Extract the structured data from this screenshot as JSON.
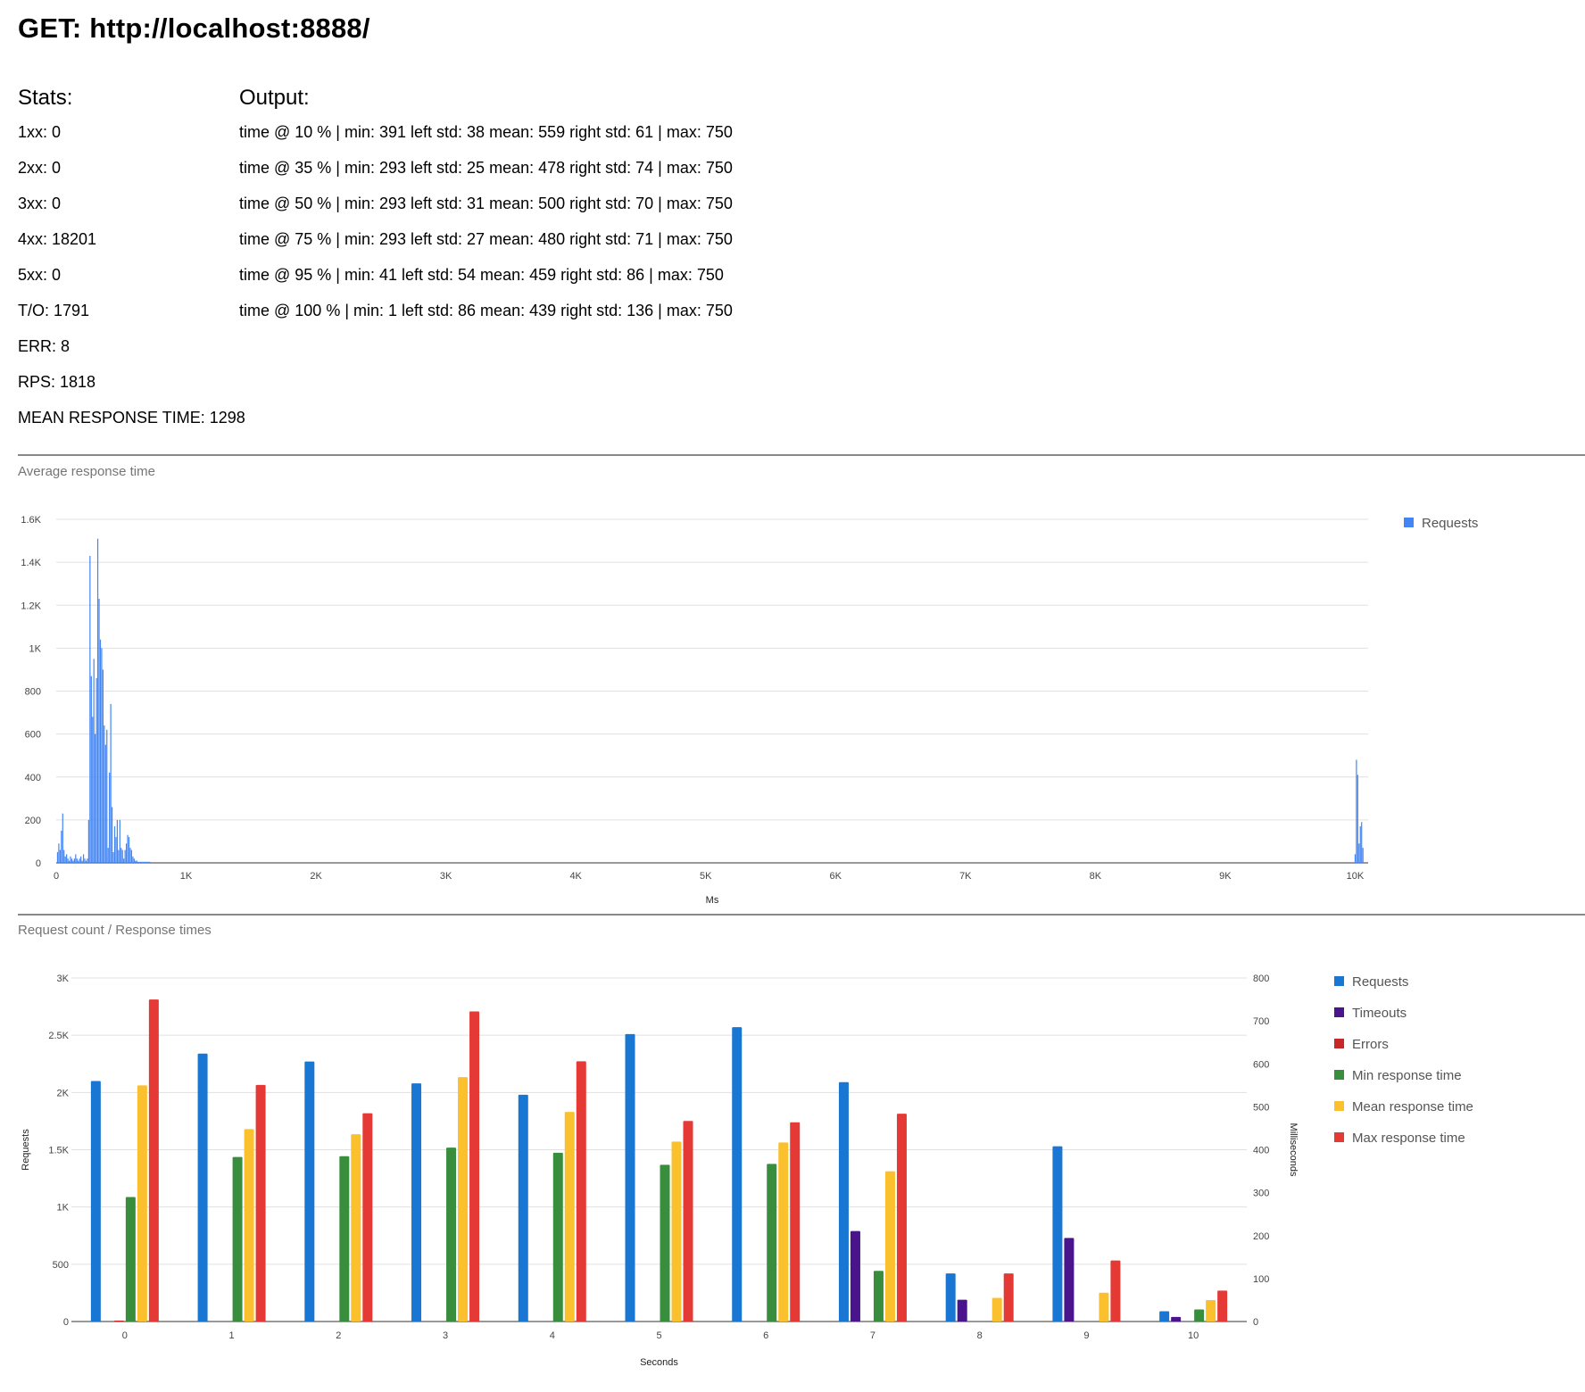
{
  "header": {
    "title": "GET: http://localhost:8888/"
  },
  "stats": {
    "heading": "Stats:",
    "rows": [
      "1xx: 0",
      "2xx: 0",
      "3xx: 0",
      "4xx: 18201",
      "5xx: 0",
      "T/O: 1791",
      "ERR: 8",
      "RPS: 1818",
      "MEAN RESPONSE TIME: 1298"
    ]
  },
  "output": {
    "heading": "Output:",
    "rows": [
      "time @ 10 % | min: 391 left std: 38 mean: 559 right std: 61 | max: 750",
      "time @ 35 % | min: 293 left std: 25 mean: 478 right std: 74 | max: 750",
      "time @ 50 % | min: 293 left std: 31 mean: 500 right std: 70 | max: 750",
      "time @ 75 % | min: 293 left std: 27 mean: 480 right std: 71 | max: 750",
      "time @ 95 % | min: 41 left std: 54 mean: 459 right std: 86 | max: 750",
      "time @ 100 % | min: 1 left std: 86 mean: 439 right std: 136 | max: 750"
    ]
  },
  "chart_data": [
    {
      "type": "bar",
      "title": "Average response time",
      "xlabel": "Ms",
      "ylabel": "",
      "xlim": [
        0,
        10100
      ],
      "ylim": [
        0,
        1600
      ],
      "x_ticks": [
        0,
        1000,
        2000,
        3000,
        4000,
        5000,
        6000,
        7000,
        8000,
        9000,
        10000
      ],
      "x_tick_labels": [
        "0",
        "1K",
        "2K",
        "3K",
        "4K",
        "5K",
        "6K",
        "7K",
        "8K",
        "9K",
        "10K"
      ],
      "y_ticks": [
        0,
        200,
        400,
        600,
        800,
        1000,
        1200,
        1400,
        1600
      ],
      "y_tick_labels": [
        "0",
        "200",
        "400",
        "600",
        "800",
        "1K",
        "1.2K",
        "1.4K",
        "1.6K"
      ],
      "grid": true,
      "legend_position": "right",
      "series": [
        {
          "name": "Requests",
          "color": "#4285f4"
        }
      ],
      "x": [
        10,
        20,
        30,
        40,
        50,
        60,
        70,
        80,
        90,
        100,
        110,
        120,
        130,
        140,
        150,
        160,
        170,
        180,
        190,
        200,
        210,
        220,
        230,
        240,
        250,
        260,
        270,
        280,
        290,
        300,
        310,
        320,
        330,
        340,
        350,
        360,
        370,
        380,
        390,
        400,
        410,
        420,
        430,
        440,
        450,
        460,
        470,
        480,
        490,
        500,
        510,
        520,
        530,
        540,
        550,
        560,
        570,
        580,
        590,
        600,
        610,
        620,
        630,
        640,
        650,
        660,
        670,
        680,
        690,
        700,
        710,
        720,
        10000,
        10010,
        10020,
        10030,
        10040,
        10050,
        10060
      ],
      "values": [
        50,
        90,
        60,
        150,
        230,
        60,
        30,
        40,
        20,
        10,
        30,
        20,
        10,
        20,
        40,
        20,
        10,
        20,
        30,
        10,
        40,
        20,
        10,
        20,
        200,
        1430,
        870,
        680,
        950,
        600,
        860,
        1510,
        1230,
        1040,
        1000,
        900,
        640,
        550,
        620,
        70,
        420,
        740,
        260,
        50,
        170,
        120,
        200,
        60,
        200,
        70,
        60,
        20,
        60,
        90,
        130,
        120,
        70,
        60,
        30,
        20,
        10,
        10,
        5,
        5,
        5,
        5,
        5,
        5,
        5,
        5,
        5,
        5,
        40,
        480,
        410,
        90,
        170,
        190,
        70
      ]
    },
    {
      "type": "bar",
      "title": "Request count / Response times",
      "xlabel": "Seconds",
      "ylabel": "Requests",
      "ylabel_right": "Milliseconds",
      "categories": [
        "0",
        "1",
        "2",
        "3",
        "4",
        "5",
        "6",
        "7",
        "8",
        "9",
        "10"
      ],
      "ylim": [
        0,
        3000
      ],
      "ylim_right": [
        0,
        800
      ],
      "y_ticks": [
        0,
        500,
        1000,
        1500,
        2000,
        2500,
        3000
      ],
      "y_tick_labels": [
        "0",
        "500",
        "1K",
        "1.5K",
        "2K",
        "2.5K",
        "3K"
      ],
      "y_ticks_right": [
        0,
        100,
        200,
        300,
        400,
        500,
        600,
        700,
        800
      ],
      "y_tick_labels_right": [
        "0",
        "100",
        "200",
        "300",
        "400",
        "500",
        "600",
        "700",
        "800"
      ],
      "grid": true,
      "legend_position": "right",
      "series": [
        {
          "name": "Requests",
          "axis": "left",
          "color": "#1976d2",
          "values": [
            2100,
            2340,
            2270,
            2080,
            1980,
            2510,
            2570,
            2090,
            420,
            1530,
            90
          ]
        },
        {
          "name": "Timeouts",
          "axis": "left",
          "color": "#4a148c",
          "values": [
            0,
            0,
            0,
            0,
            0,
            0,
            0,
            790,
            190,
            730,
            40
          ]
        },
        {
          "name": "Errors",
          "axis": "left",
          "color": "#c62828",
          "values": [
            8,
            0,
            0,
            0,
            0,
            0,
            0,
            0,
            0,
            0,
            0
          ]
        },
        {
          "name": "Min response time",
          "axis": "right",
          "color": "#388e3c",
          "values": [
            290,
            383,
            385,
            405,
            393,
            365,
            367,
            118,
            0,
            0,
            28
          ]
        },
        {
          "name": "Mean response time",
          "axis": "right",
          "color": "#fbc02d",
          "values": [
            550,
            448,
            436,
            569,
            488,
            419,
            417,
            350,
            55,
            67,
            50
          ]
        },
        {
          "name": "Max response time",
          "axis": "right",
          "color": "#e53935",
          "values": [
            750,
            551,
            485,
            722,
            606,
            467,
            464,
            484,
            112,
            142,
            72
          ]
        }
      ]
    }
  ]
}
